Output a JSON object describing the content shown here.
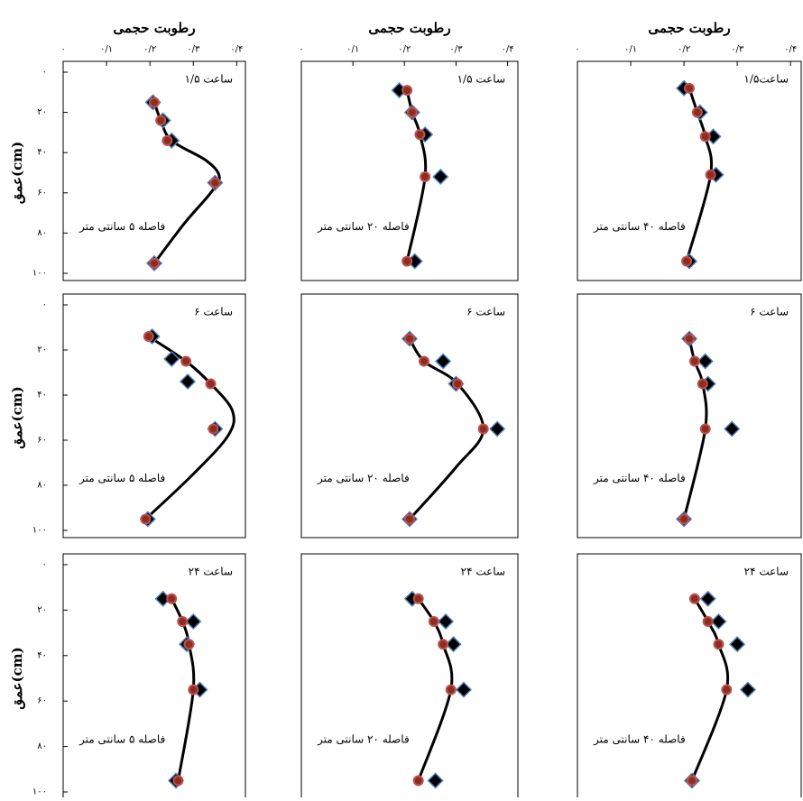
{
  "chart_data": [
    {
      "type": "scatter",
      "xlabel": "رطوبت حجمی",
      "ylabel": "عمق(cm)",
      "xlim": [
        0,
        0.42
      ],
      "ylim": [
        100,
        0
      ],
      "xticks": [
        {
          "value": 0,
          "label": "۰"
        },
        {
          "value": 0.1,
          "label": "۰/۱"
        },
        {
          "value": 0.2,
          "label": "۰/۲"
        },
        {
          "value": 0.3,
          "label": "۰/۳"
        },
        {
          "value": 0.4,
          "label": "۰/۴"
        }
      ],
      "yticks": [
        {
          "value": 0,
          "label": "۰"
        },
        {
          "value": 20,
          "label": "۲۰"
        },
        {
          "value": 40,
          "label": "۴۰"
        },
        {
          "value": 60,
          "label": "۶۰"
        },
        {
          "value": 80,
          "label": "۸۰"
        },
        {
          "value": 100,
          "label": "۱۰۰"
        }
      ],
      "annotations": [
        "۱/۵ ساعت",
        "فاصله ۵ سانتی متر"
      ],
      "series": [
        {
          "marker": "line",
          "color": "#000000",
          "x": [
            0.21,
            0.225,
            0.25,
            0.33,
            0.36,
            0.34,
            0.28,
            0.21
          ],
          "y": [
            15,
            24,
            34,
            44,
            52,
            60,
            75,
            95
          ]
        },
        {
          "marker": "diamond",
          "color": "#000000",
          "x": [
            0.207,
            0.23,
            0.25,
            0.35,
            0.21
          ],
          "y": [
            15,
            24,
            34,
            55,
            95
          ]
        },
        {
          "marker": "circle",
          "color": "#c0504d",
          "x": [
            0.21,
            0.225,
            0.24,
            0.35,
            0.21
          ],
          "y": [
            15,
            24,
            34,
            55,
            95
          ]
        }
      ]
    },
    {
      "type": "scatter",
      "xlabel": "رطوبت حجمی",
      "xlim": [
        0,
        0.42
      ],
      "ylim": [
        100,
        0
      ],
      "xticks": [
        {
          "value": 0,
          "label": "۰"
        },
        {
          "value": 0.1,
          "label": "۰/۱"
        },
        {
          "value": 0.2,
          "label": "۰/۲"
        },
        {
          "value": 0.3,
          "label": "۰/۳"
        },
        {
          "value": 0.4,
          "label": "۰/۴"
        }
      ],
      "annotations": [
        "۱/۵ ساعت",
        "فاصله ۲۰ سانتی متر"
      ],
      "series": [
        {
          "marker": "line",
          "color": "#000000",
          "x": [
            0.205,
            0.215,
            0.23,
            0.24,
            0.205
          ],
          "y": [
            9,
            20,
            31,
            52,
            94
          ]
        },
        {
          "marker": "diamond",
          "color": "#000000",
          "x": [
            0.19,
            0.215,
            0.24,
            0.27,
            0.22
          ],
          "y": [
            9,
            20,
            31,
            52,
            94
          ]
        },
        {
          "marker": "circle",
          "color": "#c0504d",
          "x": [
            0.205,
            0.215,
            0.23,
            0.24,
            0.205
          ],
          "y": [
            9,
            20,
            31,
            52,
            94
          ]
        }
      ]
    },
    {
      "type": "scatter",
      "xlabel": "رطوبت حجمی",
      "xlim": [
        0,
        0.42
      ],
      "ylim": [
        100,
        0
      ],
      "xticks": [
        {
          "value": 0,
          "label": "۰"
        },
        {
          "value": 0.1,
          "label": "۰/۱"
        },
        {
          "value": 0.2,
          "label": "۰/۲"
        },
        {
          "value": 0.3,
          "label": "۰/۳"
        },
        {
          "value": 0.4,
          "label": "۰/۴"
        }
      ],
      "annotations": [
        "۱/۵ساعت",
        "فاصله ۴۰ سانتی متر"
      ],
      "series": [
        {
          "marker": "line",
          "color": "#000000",
          "x": [
            0.21,
            0.225,
            0.24,
            0.25,
            0.205
          ],
          "y": [
            8,
            20,
            32,
            51,
            94
          ]
        },
        {
          "marker": "diamond",
          "color": "#000000",
          "x": [
            0.2,
            0.23,
            0.255,
            0.26,
            0.21
          ],
          "y": [
            8,
            20,
            32,
            51,
            94
          ]
        },
        {
          "marker": "circle",
          "color": "#c0504d",
          "x": [
            0.21,
            0.225,
            0.24,
            0.25,
            0.205
          ],
          "y": [
            8,
            20,
            32,
            51,
            94
          ]
        }
      ]
    },
    {
      "type": "scatter",
      "ylabel": "عمق(cm)",
      "xlim": [
        0,
        0.42
      ],
      "ylim": [
        100,
        0
      ],
      "yticks": [
        {
          "value": 0,
          "label": "۰"
        },
        {
          "value": 20,
          "label": "۲۰"
        },
        {
          "value": 40,
          "label": "۴۰"
        },
        {
          "value": 60,
          "label": "۶۰"
        },
        {
          "value": 80,
          "label": "۸۰"
        },
        {
          "value": 100,
          "label": "۱۰۰"
        }
      ],
      "annotations": [
        "۶ ساعت",
        "فاصله ۵ سانتی متر"
      ],
      "series": [
        {
          "marker": "line",
          "color": "#000000",
          "x": [
            0.197,
            0.283,
            0.34,
            0.39,
            0.38,
            0.3,
            0.19
          ],
          "y": [
            14,
            25,
            35,
            47,
            58,
            75,
            95
          ]
        },
        {
          "marker": "diamond",
          "color": "#000000",
          "x": [
            0.205,
            0.25,
            0.287,
            0.35,
            0.195
          ],
          "y": [
            14,
            24,
            34,
            55,
            95
          ]
        },
        {
          "marker": "circle",
          "color": "#c0504d",
          "x": [
            0.197,
            0.283,
            0.34,
            0.346,
            0.19
          ],
          "y": [
            14,
            25,
            35,
            55,
            95
          ]
        }
      ]
    },
    {
      "type": "scatter",
      "xlim": [
        0,
        0.42
      ],
      "ylim": [
        100,
        0
      ],
      "annotations": [
        "۶ ساعت",
        "فاصله ۲۰ سانتی متر"
      ],
      "series": [
        {
          "marker": "line",
          "color": "#000000",
          "x": [
            0.21,
            0.238,
            0.303,
            0.353,
            0.3,
            0.21
          ],
          "y": [
            15,
            25,
            35,
            55,
            72,
            95
          ]
        },
        {
          "marker": "diamond",
          "color": "#000000",
          "x": [
            0.21,
            0.275,
            0.3,
            0.38,
            0.21
          ],
          "y": [
            15,
            25,
            35,
            55,
            95
          ]
        },
        {
          "marker": "circle",
          "color": "#c0504d",
          "x": [
            0.21,
            0.238,
            0.303,
            0.353,
            0.21
          ],
          "y": [
            15,
            25,
            35,
            55,
            95
          ]
        }
      ]
    },
    {
      "type": "scatter",
      "xlim": [
        0,
        0.42
      ],
      "ylim": [
        100,
        0
      ],
      "annotations": [
        "۶ ساعت",
        "فاصله ۴۰ سانتی متر"
      ],
      "series": [
        {
          "marker": "line",
          "color": "#000000",
          "x": [
            0.21,
            0.22,
            0.235,
            0.24,
            0.2
          ],
          "y": [
            15,
            25,
            35,
            55,
            95
          ]
        },
        {
          "marker": "diamond",
          "color": "#000000",
          "x": [
            0.21,
            0.24,
            0.245,
            0.29,
            0.2
          ],
          "y": [
            15,
            25,
            35,
            55,
            95
          ]
        },
        {
          "marker": "circle",
          "color": "#c0504d",
          "x": [
            0.21,
            0.22,
            0.235,
            0.24,
            0.2
          ],
          "y": [
            15,
            25,
            35,
            55,
            95
          ]
        }
      ]
    },
    {
      "type": "scatter",
      "ylabel": "عمق(cm)",
      "xlim": [
        0,
        0.42
      ],
      "ylim": [
        100,
        0
      ],
      "yticks": [
        {
          "value": 0,
          "label": "۰"
        },
        {
          "value": 20,
          "label": "۲۰"
        },
        {
          "value": 40,
          "label": "۴۰"
        },
        {
          "value": 60,
          "label": "۶۰"
        },
        {
          "value": 80,
          "label": "۸۰"
        },
        {
          "value": 100,
          "label": "۱۰۰"
        }
      ],
      "annotations": [
        "۲۴ ساعت",
        "فاصله ۵ سانتی متر"
      ],
      "series": [
        {
          "marker": "line",
          "color": "#000000",
          "x": [
            0.25,
            0.275,
            0.29,
            0.3,
            0.265
          ],
          "y": [
            15,
            25,
            35,
            55,
            95
          ]
        },
        {
          "marker": "diamond",
          "color": "#000000",
          "x": [
            0.23,
            0.3,
            0.285,
            0.315,
            0.26
          ],
          "y": [
            15,
            25,
            35,
            55,
            95
          ]
        },
        {
          "marker": "circle",
          "color": "#c0504d",
          "x": [
            0.25,
            0.275,
            0.29,
            0.3,
            0.265
          ],
          "y": [
            15,
            25,
            35,
            55,
            95
          ]
        }
      ]
    },
    {
      "type": "scatter",
      "xlim": [
        0,
        0.42
      ],
      "ylim": [
        100,
        0
      ],
      "annotations": [
        "۲۴ ساعت",
        "فاصله ۲۰ سانتی متر"
      ],
      "series": [
        {
          "marker": "line",
          "color": "#000000",
          "x": [
            0.227,
            0.257,
            0.275,
            0.29,
            0.227
          ],
          "y": [
            15,
            25,
            35,
            55,
            95
          ]
        },
        {
          "marker": "diamond",
          "color": "#000000",
          "x": [
            0.215,
            0.28,
            0.295,
            0.315,
            0.26
          ],
          "y": [
            15,
            25,
            35,
            55,
            95
          ]
        },
        {
          "marker": "circle",
          "color": "#c0504d",
          "x": [
            0.227,
            0.257,
            0.275,
            0.29,
            0.227
          ],
          "y": [
            15,
            25,
            35,
            55,
            95
          ]
        }
      ]
    },
    {
      "type": "scatter",
      "xlim": [
        0,
        0.42
      ],
      "ylim": [
        100,
        0
      ],
      "annotations": [
        "۲۴ ساعت",
        "فاصله ۴۰ سانتی متر"
      ],
      "series": [
        {
          "marker": "line",
          "color": "#000000",
          "x": [
            0.22,
            0.245,
            0.265,
            0.28,
            0.215
          ],
          "y": [
            15,
            25,
            35,
            55,
            95
          ]
        },
        {
          "marker": "diamond",
          "color": "#000000",
          "x": [
            0.245,
            0.265,
            0.3,
            0.32,
            0.215
          ],
          "y": [
            15,
            25,
            35,
            55,
            95
          ]
        },
        {
          "marker": "circle",
          "color": "#c0504d",
          "x": [
            0.22,
            0.245,
            0.265,
            0.28,
            0.215
          ],
          "y": [
            15,
            25,
            35,
            55,
            95
          ]
        }
      ]
    }
  ]
}
